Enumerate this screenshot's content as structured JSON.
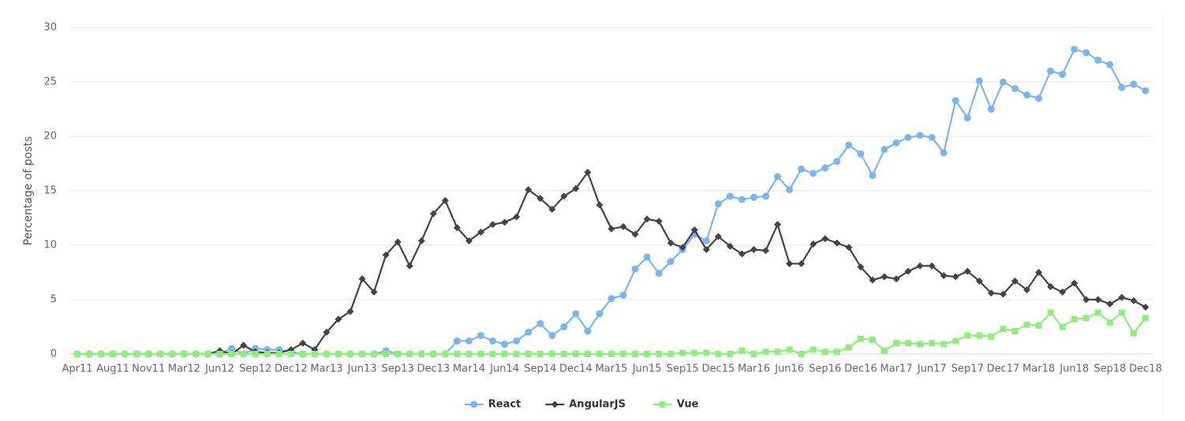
{
  "chart_data": {
    "type": "line",
    "y_label": "Percentage of posts",
    "categories": [
      "Apr11",
      null,
      null,
      "Aug11",
      null,
      null,
      "Nov11",
      null,
      null,
      "Mar12",
      null,
      null,
      "Jun12",
      null,
      null,
      "Sep12",
      null,
      null,
      "Dec12",
      null,
      null,
      "Mar13",
      null,
      null,
      "Jun13",
      null,
      null,
      "Sep13",
      null,
      null,
      "Dec13",
      null,
      null,
      "Mar14",
      null,
      null,
      "Jun14",
      null,
      null,
      "Sep14",
      null,
      null,
      "Dec14",
      null,
      null,
      "Mar15",
      null,
      null,
      "Jun15",
      null,
      null,
      "Sep15",
      null,
      null,
      "Dec15",
      null,
      null,
      "Mar16",
      null,
      null,
      "Jun16",
      null,
      null,
      "Sep16",
      null,
      null,
      "Dec16",
      null,
      null,
      "Mar17",
      null,
      null,
      "Jun17",
      null,
      null,
      "Sep17",
      null,
      null,
      "Dec17",
      null,
      null,
      "Mar18",
      null,
      null,
      "Jun18",
      null,
      null,
      "Sep18",
      null,
      null,
      "Dec18"
    ],
    "series": [
      {
        "name": "React",
        "color": "#7cb5ec",
        "marker": "circle",
        "values": [
          0,
          0,
          0,
          0,
          0,
          0,
          0,
          0,
          0,
          0,
          0,
          0,
          0,
          0.5,
          0,
          0.5,
          0.4,
          0.4,
          0.2,
          0,
          0,
          0,
          0,
          0,
          0,
          0,
          0.3,
          0,
          0,
          0,
          0,
          0,
          1.2,
          1.2,
          1.7,
          1.2,
          0.9,
          1.2,
          2.0,
          2.8,
          1.7,
          2.5,
          3.7,
          2.1,
          3.7,
          5.1,
          5.4,
          7.8,
          8.9,
          7.4,
          8.5,
          9.6,
          11.0,
          10.4,
          13.8,
          14.5,
          14.2,
          14.4,
          14.5,
          16.3,
          15.1,
          17.0,
          16.6,
          17.1,
          17.7,
          19.2,
          18.4,
          16.4,
          18.8,
          19.4,
          19.9,
          20.1,
          19.9,
          18.5,
          23.3,
          21.7,
          25.1,
          22.5,
          25.0,
          24.4,
          23.8,
          23.5,
          26.0,
          25.7,
          28.0,
          27.7,
          27.0,
          26.6,
          24.5,
          24.8,
          24.2
        ]
      },
      {
        "name": "AngularJS",
        "color": "#434348",
        "marker": "diamond",
        "values": [
          0,
          0,
          0,
          0,
          0,
          0,
          0,
          0,
          0,
          0,
          0,
          0,
          0.3,
          0,
          0.8,
          0.2,
          0.1,
          0.1,
          0.4,
          1.0,
          0.4,
          2.0,
          3.2,
          3.9,
          6.9,
          5.7,
          9.1,
          10.3,
          8.1,
          10.4,
          12.9,
          14.1,
          11.6,
          10.4,
          11.2,
          11.9,
          12.1,
          12.6,
          15.1,
          14.3,
          13.3,
          14.5,
          15.2,
          16.7,
          13.7,
          11.5,
          11.7,
          11.0,
          12.4,
          12.2,
          10.2,
          9.8,
          11.4,
          9.6,
          10.8,
          9.9,
          9.2,
          9.6,
          9.5,
          11.9,
          8.3,
          8.3,
          10.1,
          10.6,
          10.2,
          9.8,
          8.0,
          6.8,
          7.1,
          6.9,
          7.6,
          8.1,
          8.1,
          7.2,
          7.1,
          7.6,
          6.7,
          5.6,
          5.5,
          6.7,
          5.9,
          7.5,
          6.2,
          5.7,
          6.5,
          5.0,
          5.0,
          4.6,
          5.2,
          4.9,
          4.3
        ]
      },
      {
        "name": "Vue",
        "color": "#90ed7d",
        "marker": "square",
        "values": [
          0,
          0,
          0,
          0,
          0,
          0,
          0,
          0,
          0,
          0,
          0,
          0,
          0,
          0,
          0,
          0,
          0,
          0,
          0,
          0,
          0,
          0,
          0,
          0,
          0,
          0,
          0,
          0,
          0,
          0,
          0,
          0,
          0,
          0,
          0,
          0,
          0,
          0,
          0,
          0,
          0,
          0,
          0,
          0,
          0,
          0,
          0,
          0,
          0,
          0,
          0,
          0.1,
          0.1,
          0.1,
          0,
          0,
          0.3,
          0,
          0.2,
          0.2,
          0.4,
          0,
          0.4,
          0.2,
          0.2,
          0.6,
          1.4,
          1.3,
          0.3,
          1.0,
          1.0,
          0.9,
          1.0,
          0.9,
          1.2,
          1.7,
          1.7,
          1.6,
          2.3,
          2.1,
          2.7,
          2.6,
          3.8,
          2.5,
          3.2,
          3.3,
          3.8,
          2.9,
          3.8,
          1.9,
          3.3
        ]
      }
    ],
    "ylim": [
      0,
      30
    ],
    "yticks": [
      0,
      5,
      10,
      15,
      20,
      25,
      30
    ],
    "grid": true,
    "legend": "bottom"
  }
}
